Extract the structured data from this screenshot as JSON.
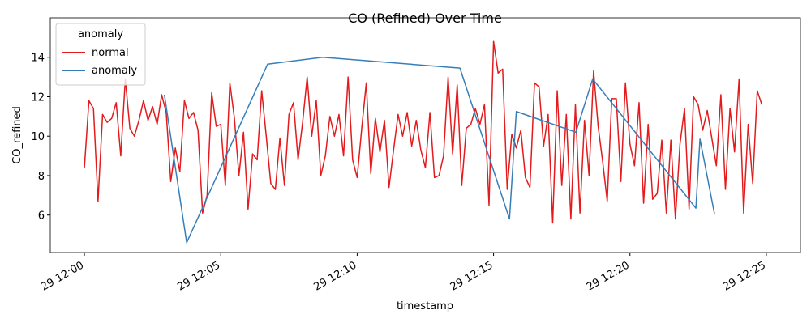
{
  "chart_data": {
    "type": "line",
    "title": "CO (Refined) Over Time",
    "x_label": "timestamp",
    "y_label": "CO_refined",
    "legend_title": "anomaly",
    "legend_position": "upper left",
    "xlim": [
      -75,
      1575
    ],
    "ylim": [
      4.1,
      16.0
    ],
    "xticks": [
      {
        "value": 0,
        "label": "29 12:00"
      },
      {
        "value": 300,
        "label": "29 12:05"
      },
      {
        "value": 600,
        "label": "29 12:10"
      },
      {
        "value": 900,
        "label": "29 12:15"
      },
      {
        "value": 1200,
        "label": "29 12:20"
      },
      {
        "value": 1500,
        "label": "29 12:25"
      }
    ],
    "yticks": [
      6,
      8,
      10,
      12,
      14
    ],
    "series": [
      {
        "name": "normal",
        "color": "#e41a1c",
        "x": [
          0,
          10,
          20,
          30,
          40,
          50,
          60,
          70,
          80,
          90,
          100,
          110,
          120,
          130,
          140,
          150,
          160,
          170,
          180,
          190,
          200,
          210,
          220,
          230,
          240,
          250,
          260,
          270,
          280,
          290,
          300,
          310,
          320,
          330,
          340,
          350,
          360,
          370,
          380,
          390,
          400,
          410,
          420,
          430,
          440,
          450,
          460,
          470,
          480,
          490,
          500,
          510,
          520,
          530,
          540,
          550,
          560,
          570,
          580,
          590,
          600,
          610,
          620,
          630,
          640,
          650,
          660,
          670,
          680,
          690,
          700,
          710,
          720,
          730,
          740,
          750,
          760,
          770,
          780,
          790,
          800,
          810,
          820,
          830,
          840,
          850,
          860,
          870,
          880,
          890,
          900,
          910,
          920,
          930,
          940,
          950,
          960,
          970,
          980,
          990,
          1000,
          1010,
          1020,
          1030,
          1040,
          1050,
          1060,
          1070,
          1080,
          1090,
          1100,
          1110,
          1120,
          1130,
          1140,
          1150,
          1160,
          1170,
          1180,
          1190,
          1200,
          1210,
          1220,
          1230,
          1240,
          1250,
          1260,
          1270,
          1280,
          1290,
          1300,
          1310,
          1320,
          1330,
          1340,
          1350,
          1360,
          1370,
          1380,
          1390,
          1400,
          1410,
          1420,
          1430,
          1440,
          1450,
          1460,
          1470,
          1480,
          1490
        ],
        "values": [
          8.4,
          11.8,
          11.4,
          6.7,
          11.1,
          10.7,
          10.9,
          11.7,
          9.0,
          12.9,
          10.4,
          10.0,
          10.8,
          11.8,
          10.8,
          11.5,
          10.6,
          12.1,
          11.2,
          7.7,
          9.4,
          8.2,
          11.8,
          10.9,
          11.2,
          10.3,
          6.1,
          7.0,
          12.2,
          10.5,
          10.6,
          7.5,
          12.7,
          10.9,
          8.0,
          10.2,
          6.3,
          9.1,
          8.8,
          12.3,
          10.0,
          7.6,
          7.3,
          9.9,
          7.5,
          11.1,
          11.7,
          8.8,
          10.7,
          13.0,
          10.0,
          11.8,
          8.0,
          9.0,
          11.0,
          10.0,
          11.1,
          9.0,
          13.0,
          8.8,
          7.9,
          10.4,
          12.7,
          8.1,
          10.9,
          9.2,
          10.8,
          7.4,
          9.3,
          11.1,
          10.0,
          11.2,
          9.5,
          10.8,
          9.3,
          8.4,
          11.2,
          7.9,
          8.0,
          9.0,
          13.0,
          9.1,
          12.6,
          7.5,
          10.4,
          10.6,
          11.4,
          10.6,
          11.6,
          6.5,
          14.8,
          13.2,
          13.4,
          7.3,
          10.1,
          9.4,
          10.3,
          7.9,
          7.4,
          12.7,
          12.5,
          9.5,
          11.1,
          5.6,
          12.3,
          7.5,
          11.1,
          5.8,
          11.6,
          6.1,
          10.8,
          8.0,
          13.3,
          10.5,
          8.7,
          6.7,
          11.9,
          11.9,
          7.7,
          12.7,
          9.6,
          8.5,
          11.7,
          6.6,
          10.6,
          6.8,
          7.1,
          9.8,
          6.1,
          9.8,
          5.8,
          9.6,
          11.4,
          6.3,
          12.0,
          11.6,
          10.3,
          11.3,
          9.9,
          8.5,
          12.1,
          7.3,
          11.4,
          9.2,
          12.9,
          6.1,
          10.6,
          7.6,
          12.3,
          11.6
        ]
      },
      {
        "name": "anomaly",
        "color": "#377eb8",
        "x": [
          176,
          225,
          403,
          524,
          826,
          935,
          950,
          1081,
          1118,
          1345,
          1354,
          1386
        ],
        "values": [
          12.1,
          4.6,
          13.65,
          14.0,
          13.45,
          5.8,
          11.25,
          10.2,
          12.9,
          6.35,
          9.85,
          6.05
        ]
      }
    ]
  }
}
